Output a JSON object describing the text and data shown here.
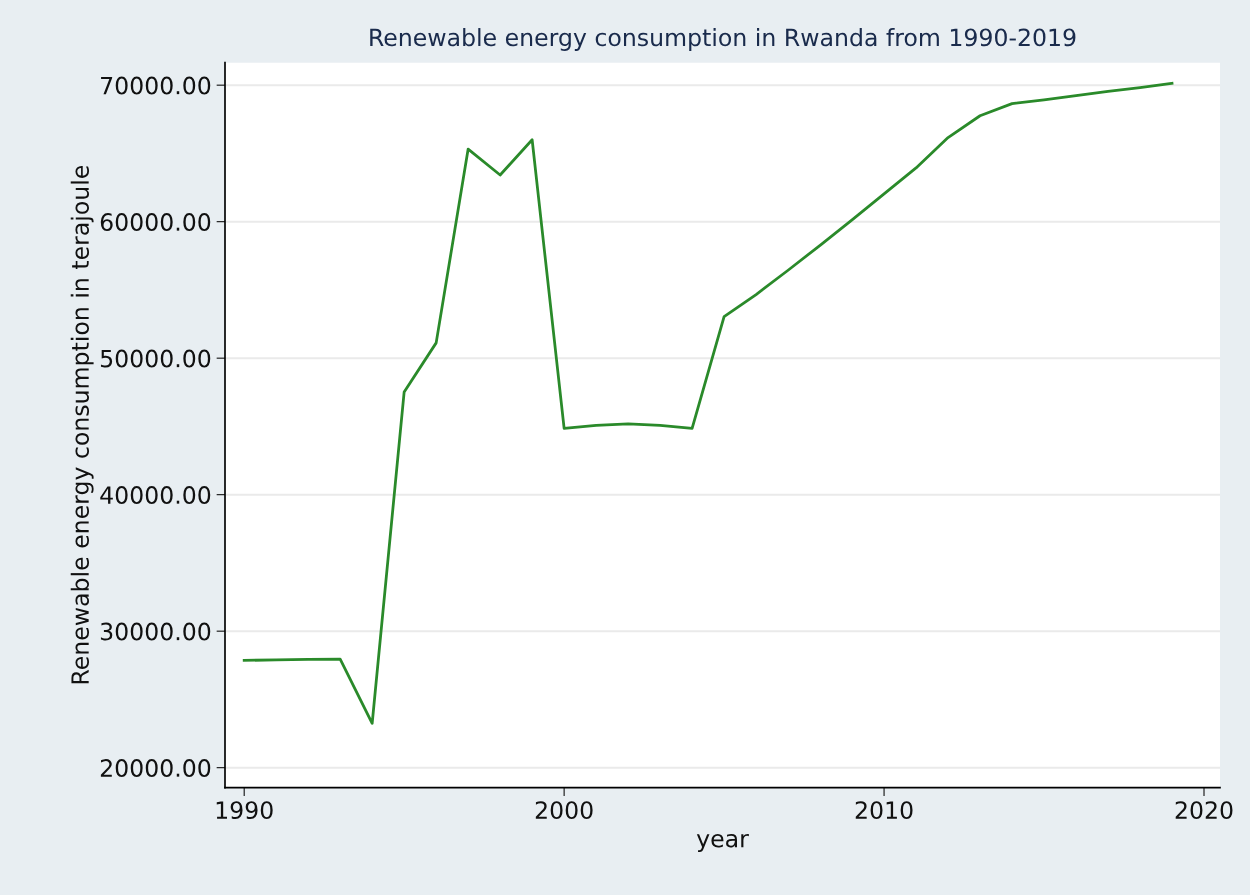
{
  "chart_data": {
    "type": "line",
    "title": "Renewable energy consumption in Rwanda from 1990-2019",
    "xlabel": "year",
    "ylabel": "Renewable energy consumption in terajoule",
    "x": [
      1990,
      1991,
      1992,
      1993,
      1994,
      1995,
      1996,
      1997,
      1998,
      1999,
      2000,
      2001,
      2002,
      2003,
      2004,
      2005,
      2006,
      2007,
      2008,
      2009,
      2010,
      2011,
      2012,
      2013,
      2014,
      2015,
      2016,
      2017,
      2018,
      2019
    ],
    "series": [
      {
        "color": "#2a8a2a",
        "values": [
          27860,
          27890,
          27930,
          27960,
          23250,
          47530,
          51120,
          65320,
          63420,
          66000,
          44850,
          45080,
          45190,
          45080,
          44850,
          53050,
          54660,
          56440,
          58270,
          60130,
          62040,
          63940,
          66160,
          67760,
          68650,
          68930,
          69240,
          69540,
          69820,
          70130
        ]
      }
    ],
    "xlim": [
      1989.4,
      2020.5
    ],
    "xticks": [
      1990,
      2000,
      2010,
      2020
    ],
    "ylim": [
      18540,
      71650
    ],
    "yticks": [
      {
        "value": 20000,
        "label": "20000.00"
      },
      {
        "value": 30000,
        "label": "30000.00"
      },
      {
        "value": 40000,
        "label": "40000.00"
      },
      {
        "value": 50000,
        "label": "50000.00"
      },
      {
        "value": 60000,
        "label": "60000.00"
      },
      {
        "value": 70000,
        "label": "70000.00"
      }
    ],
    "grid": "y",
    "marker": "none",
    "line_style": "solid"
  }
}
